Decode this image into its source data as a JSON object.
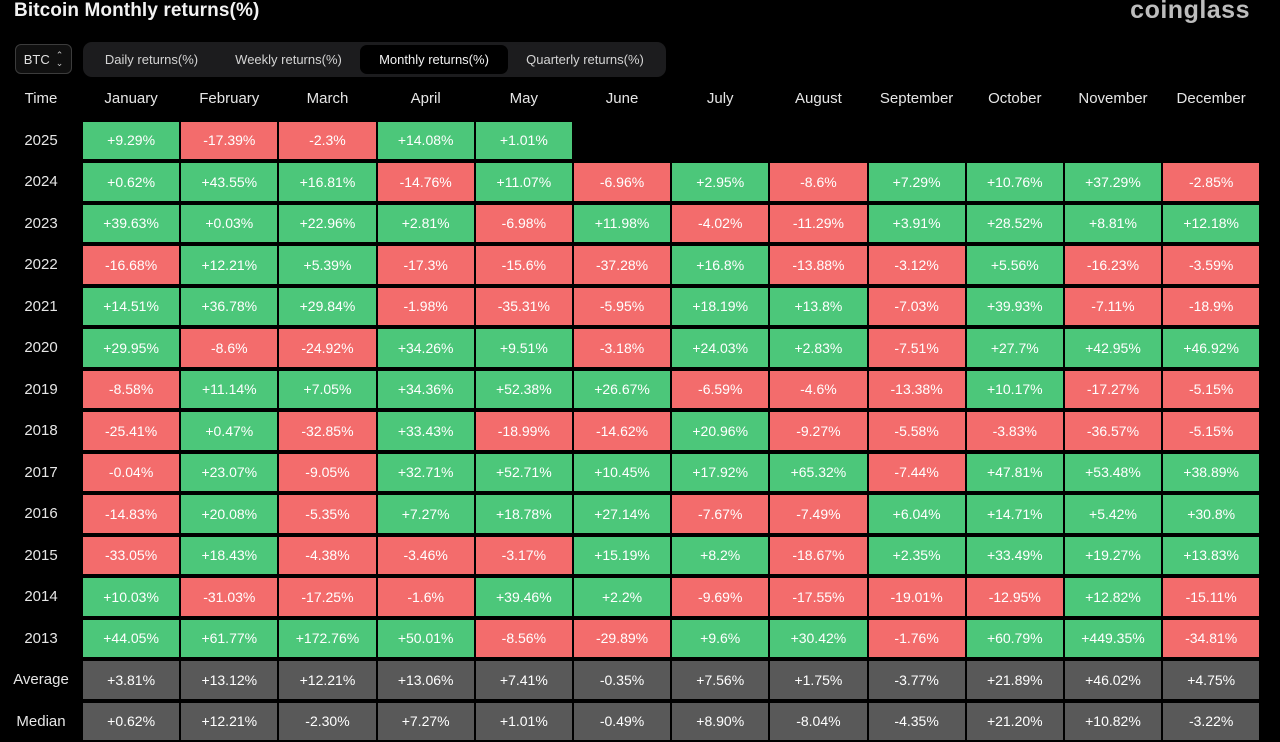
{
  "page": {
    "title": "Bitcoin Monthly returns(%)",
    "logo": "coinglass"
  },
  "asset_select": {
    "value": "BTC"
  },
  "tabs": [
    {
      "label": "Daily returns(%)",
      "active": false
    },
    {
      "label": "Weekly returns(%)",
      "active": false
    },
    {
      "label": "Monthly returns(%)",
      "active": true
    },
    {
      "label": "Quarterly returns(%)",
      "active": false
    }
  ],
  "table": {
    "corner_label": "Time",
    "columns": [
      "January",
      "February",
      "March",
      "April",
      "May",
      "June",
      "July",
      "August",
      "September",
      "October",
      "November",
      "December"
    ],
    "rows": [
      {
        "label": "2025",
        "values": [
          "+9.29%",
          "-17.39%",
          "-2.3%",
          "+14.08%",
          "+1.01%",
          "",
          "",
          "",
          "",
          "",
          "",
          ""
        ]
      },
      {
        "label": "2024",
        "values": [
          "+0.62%",
          "+43.55%",
          "+16.81%",
          "-14.76%",
          "+11.07%",
          "-6.96%",
          "+2.95%",
          "-8.6%",
          "+7.29%",
          "+10.76%",
          "+37.29%",
          "-2.85%"
        ]
      },
      {
        "label": "2023",
        "values": [
          "+39.63%",
          "+0.03%",
          "+22.96%",
          "+2.81%",
          "-6.98%",
          "+11.98%",
          "-4.02%",
          "-11.29%",
          "+3.91%",
          "+28.52%",
          "+8.81%",
          "+12.18%"
        ]
      },
      {
        "label": "2022",
        "values": [
          "-16.68%",
          "+12.21%",
          "+5.39%",
          "-17.3%",
          "-15.6%",
          "-37.28%",
          "+16.8%",
          "-13.88%",
          "-3.12%",
          "+5.56%",
          "-16.23%",
          "-3.59%"
        ]
      },
      {
        "label": "2021",
        "values": [
          "+14.51%",
          "+36.78%",
          "+29.84%",
          "-1.98%",
          "-35.31%",
          "-5.95%",
          "+18.19%",
          "+13.8%",
          "-7.03%",
          "+39.93%",
          "-7.11%",
          "-18.9%"
        ]
      },
      {
        "label": "2020",
        "values": [
          "+29.95%",
          "-8.6%",
          "-24.92%",
          "+34.26%",
          "+9.51%",
          "-3.18%",
          "+24.03%",
          "+2.83%",
          "-7.51%",
          "+27.7%",
          "+42.95%",
          "+46.92%"
        ]
      },
      {
        "label": "2019",
        "values": [
          "-8.58%",
          "+11.14%",
          "+7.05%",
          "+34.36%",
          "+52.38%",
          "+26.67%",
          "-6.59%",
          "-4.6%",
          "-13.38%",
          "+10.17%",
          "-17.27%",
          "-5.15%"
        ]
      },
      {
        "label": "2018",
        "values": [
          "-25.41%",
          "+0.47%",
          "-32.85%",
          "+33.43%",
          "-18.99%",
          "-14.62%",
          "+20.96%",
          "-9.27%",
          "-5.58%",
          "-3.83%",
          "-36.57%",
          "-5.15%"
        ]
      },
      {
        "label": "2017",
        "values": [
          "-0.04%",
          "+23.07%",
          "-9.05%",
          "+32.71%",
          "+52.71%",
          "+10.45%",
          "+17.92%",
          "+65.32%",
          "-7.44%",
          "+47.81%",
          "+53.48%",
          "+38.89%"
        ]
      },
      {
        "label": "2016",
        "values": [
          "-14.83%",
          "+20.08%",
          "-5.35%",
          "+7.27%",
          "+18.78%",
          "+27.14%",
          "-7.67%",
          "-7.49%",
          "+6.04%",
          "+14.71%",
          "+5.42%",
          "+30.8%"
        ]
      },
      {
        "label": "2015",
        "values": [
          "-33.05%",
          "+18.43%",
          "-4.38%",
          "-3.46%",
          "-3.17%",
          "+15.19%",
          "+8.2%",
          "-18.67%",
          "+2.35%",
          "+33.49%",
          "+19.27%",
          "+13.83%"
        ]
      },
      {
        "label": "2014",
        "values": [
          "+10.03%",
          "-31.03%",
          "-17.25%",
          "-1.6%",
          "+39.46%",
          "+2.2%",
          "-9.69%",
          "-17.55%",
          "-19.01%",
          "-12.95%",
          "+12.82%",
          "-15.11%"
        ]
      },
      {
        "label": "2013",
        "values": [
          "+44.05%",
          "+61.77%",
          "+172.76%",
          "+50.01%",
          "-8.56%",
          "-29.89%",
          "+9.6%",
          "+30.42%",
          "-1.76%",
          "+60.79%",
          "+449.35%",
          "-34.81%"
        ]
      }
    ],
    "summary_rows": [
      {
        "label": "Average",
        "values": [
          "+3.81%",
          "+13.12%",
          "+12.21%",
          "+13.06%",
          "+7.41%",
          "-0.35%",
          "+7.56%",
          "+1.75%",
          "-3.77%",
          "+21.89%",
          "+46.02%",
          "+4.75%"
        ]
      },
      {
        "label": "Median",
        "values": [
          "+0.62%",
          "+12.21%",
          "-2.30%",
          "+7.27%",
          "+1.01%",
          "-0.49%",
          "+8.90%",
          "-8.04%",
          "-4.35%",
          "+21.20%",
          "+10.82%",
          "-3.22%"
        ]
      }
    ]
  },
  "colors": {
    "positive": "#4cc77a",
    "negative": "#f36c6c",
    "summary": "#595959",
    "background": "#000000"
  }
}
